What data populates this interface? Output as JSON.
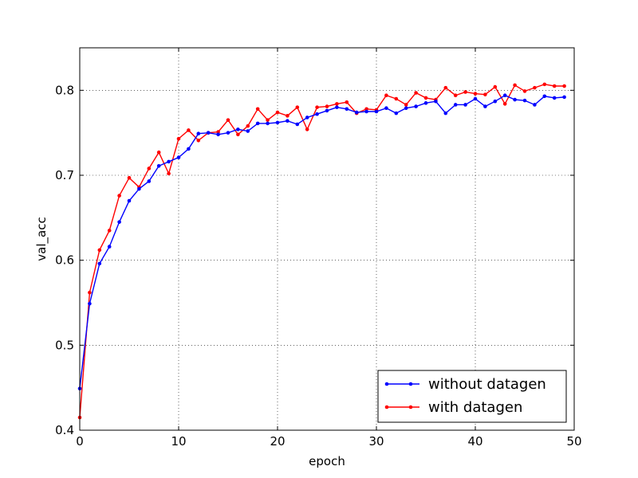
{
  "chart_data": {
    "type": "line",
    "title": "",
    "xlabel": "epoch",
    "ylabel": "val_acc",
    "xlim": [
      0,
      50
    ],
    "ylim": [
      0.4,
      0.85
    ],
    "xticks": [
      0,
      10,
      20,
      30,
      40,
      50
    ],
    "yticks": [
      0.4,
      0.5,
      0.6,
      0.7,
      0.8
    ],
    "xtick_labels": [
      "0",
      "10",
      "20",
      "30",
      "40",
      "50"
    ],
    "ytick_labels": [
      "0.4",
      "0.5",
      "0.6",
      "0.7",
      "0.8"
    ],
    "grid": true,
    "legend_position": "lower-right",
    "x": [
      0,
      1,
      2,
      3,
      4,
      5,
      6,
      7,
      8,
      9,
      10,
      11,
      12,
      13,
      14,
      15,
      16,
      17,
      18,
      19,
      20,
      21,
      22,
      23,
      24,
      25,
      26,
      27,
      28,
      29,
      30,
      31,
      32,
      33,
      34,
      35,
      36,
      37,
      38,
      39,
      40,
      41,
      42,
      43,
      44,
      45,
      46,
      47,
      48,
      49
    ],
    "series": [
      {
        "name": "without datagen",
        "color": "#0000ff",
        "values": [
          0.449,
          0.549,
          0.596,
          0.616,
          0.645,
          0.67,
          0.684,
          0.693,
          0.711,
          0.716,
          0.721,
          0.731,
          0.749,
          0.75,
          0.748,
          0.75,
          0.754,
          0.752,
          0.761,
          0.761,
          0.762,
          0.764,
          0.76,
          0.768,
          0.772,
          0.776,
          0.78,
          0.778,
          0.774,
          0.775,
          0.775,
          0.779,
          0.773,
          0.779,
          0.781,
          0.785,
          0.787,
          0.773,
          0.783,
          0.783,
          0.79,
          0.781,
          0.787,
          0.794,
          0.789,
          0.788,
          0.783,
          0.793,
          0.791,
          0.792
        ]
      },
      {
        "name": "with datagen",
        "color": "#ff0000",
        "values": [
          0.415,
          0.562,
          0.612,
          0.635,
          0.676,
          0.697,
          0.686,
          0.708,
          0.727,
          0.702,
          0.743,
          0.753,
          0.741,
          0.75,
          0.751,
          0.765,
          0.748,
          0.758,
          0.778,
          0.765,
          0.774,
          0.77,
          0.78,
          0.754,
          0.78,
          0.781,
          0.784,
          0.786,
          0.773,
          0.778,
          0.777,
          0.794,
          0.79,
          0.783,
          0.797,
          0.791,
          0.789,
          0.803,
          0.794,
          0.798,
          0.796,
          0.795,
          0.804,
          0.784,
          0.806,
          0.799,
          0.803,
          0.807,
          0.805,
          0.805
        ]
      }
    ]
  }
}
